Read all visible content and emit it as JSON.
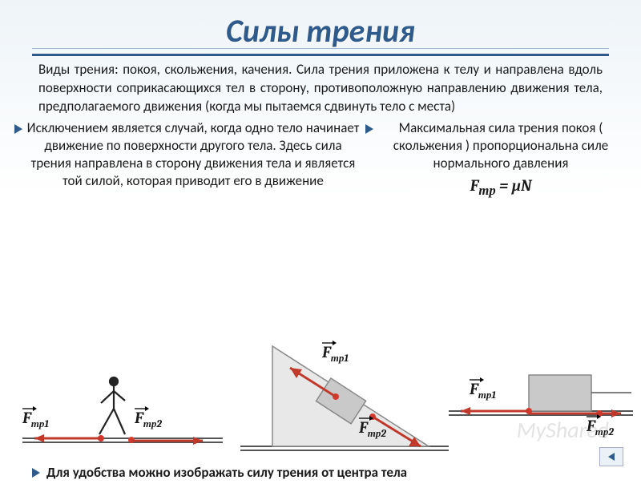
{
  "title": "Силы трения",
  "para1": "Виды трения: покоя, скольжения, качения.   Сила трения приложена к телу и направлена вдоль поверхности соприкасающихся тел в сторону, противоположную направлению движения тела, предполагаемого движения (когда мы пытаемся сдвинуть тело с места)",
  "left_text": "Исключением является случай, когда одно тело  начинает движение по поверхности  другого тела. Здесь сила трения направлена в сторону движения тела и является той силой,  которая  приводит его в движение",
  "right_text": "Максимальная сила трения покоя ( скольжения ) пропорциональна силе нормального давления",
  "formula_html": "F<sub>тр</sub> = μN",
  "footer": "Для удобства можно изображать силу трения от центра тела",
  "watermark": "MyShared",
  "labels": {
    "walk_f1": "F<sub>тр1</sub>",
    "walk_f2": "F<sub>тр2</sub>",
    "incline_f1": "F<sub>тр1</sub>",
    "incline_f2": "F<sub>тр2</sub>",
    "flat_f1": "F<sub>тр1</sub>",
    "flat_f2": "F<sub>тр2</sub>"
  },
  "colors": {
    "accent": "#2f5a8c",
    "arrow": "#c0392b",
    "dot": "#d63a2e",
    "block_fill": "#c9c9c9",
    "block_stroke": "#888888",
    "ground": "#555555",
    "ramp_fill": "#e8e8e8"
  }
}
